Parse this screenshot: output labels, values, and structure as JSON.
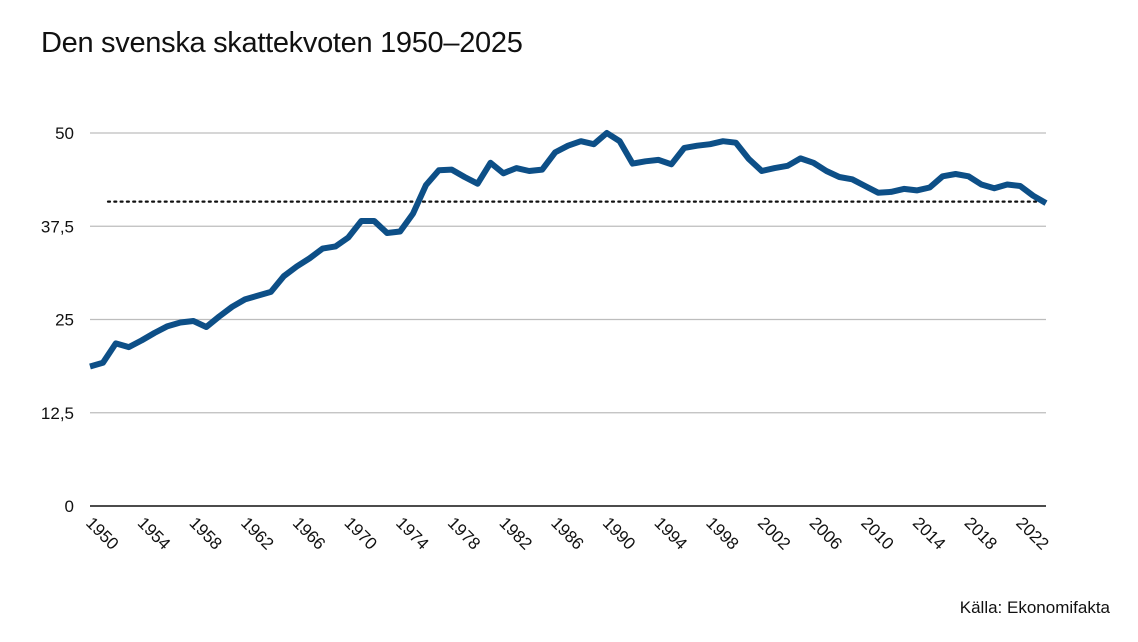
{
  "chart_data": {
    "type": "line",
    "title": "Den svenska skattekvoten 1950–2025",
    "source": "Källa: Ekonomifakta",
    "y_ticks": [
      "0",
      "12,5",
      "25",
      "37,5",
      "50"
    ],
    "y_tick_values": [
      0,
      12.5,
      25,
      37.5,
      50
    ],
    "x_ticks": [
      "1950",
      "1954",
      "1958",
      "1962",
      "1966",
      "1970",
      "1974",
      "1978",
      "1982",
      "1986",
      "1990",
      "1994",
      "1998",
      "2002",
      "2006",
      "2010",
      "2014",
      "2018",
      "2022"
    ],
    "ylim": [
      0,
      50
    ],
    "xlim": [
      1950,
      2024
    ],
    "grid": true,
    "line_color": "#0d4f87",
    "reference_line": {
      "value": 40.8,
      "style": "dotted",
      "color": "#111111"
    },
    "series": [
      {
        "x": [
          1950,
          1951,
          1952,
          1953,
          1954,
          1955,
          1956,
          1957,
          1958,
          1959,
          1960,
          1961,
          1962,
          1963,
          1964,
          1965,
          1966,
          1967,
          1968,
          1969,
          1970,
          1971,
          1972,
          1973,
          1974,
          1975,
          1976,
          1977,
          1978,
          1979,
          1980,
          1981,
          1982,
          1983,
          1984,
          1985,
          1986,
          1987,
          1988,
          1989,
          1990,
          1991,
          1992,
          1993,
          1994,
          1995,
          1996,
          1997,
          1998,
          1999,
          2000,
          2001,
          2002,
          2003,
          2004,
          2005,
          2006,
          2007,
          2008,
          2009,
          2010,
          2011,
          2012,
          2013,
          2014,
          2015,
          2016,
          2017,
          2018,
          2019,
          2020,
          2021,
          2022,
          2023,
          2024
        ],
        "values": [
          18.7,
          19.2,
          21.8,
          21.3,
          22.2,
          23.2,
          24.1,
          24.6,
          24.8,
          24.0,
          25.4,
          26.7,
          27.7,
          28.2,
          28.7,
          30.8,
          32.1,
          33.2,
          34.5,
          34.8,
          36.0,
          38.2,
          38.2,
          36.6,
          36.8,
          39.2,
          43.0,
          45.0,
          45.1,
          44.1,
          43.2,
          46.0,
          44.6,
          45.3,
          44.9,
          45.1,
          47.4,
          48.3,
          48.9,
          48.5,
          50.0,
          48.9,
          45.9,
          46.2,
          46.4,
          45.8,
          48.0,
          48.3,
          48.5,
          48.9,
          48.7,
          46.5,
          44.9,
          45.3,
          45.6,
          46.6,
          46.0,
          44.9,
          44.1,
          43.8,
          42.9,
          42.0,
          42.1,
          42.5,
          42.3,
          42.7,
          44.2,
          44.5,
          44.2,
          43.1,
          42.6,
          43.1,
          42.9,
          41.6,
          40.6
        ]
      }
    ]
  }
}
